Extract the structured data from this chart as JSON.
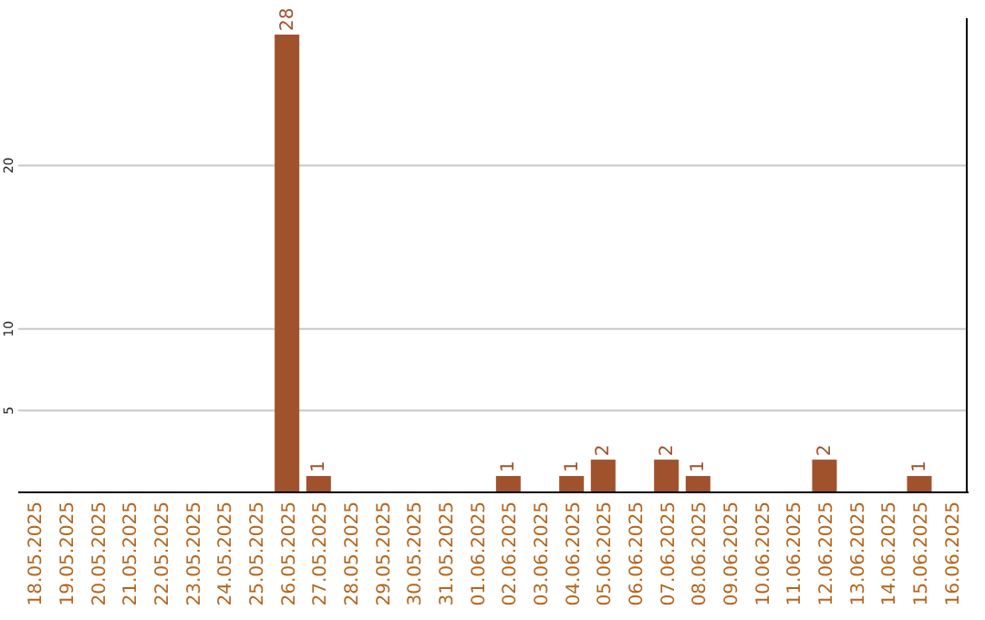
{
  "chart_data": {
    "type": "bar",
    "categories": [
      "18.05.2025",
      "19.05.2025",
      "20.05.2025",
      "21.05.2025",
      "22.05.2025",
      "23.05.2025",
      "24.05.2025",
      "25.05.2025",
      "26.05.2025",
      "27.05.2025",
      "28.05.2025",
      "29.05.2025",
      "30.05.2025",
      "31.05.2025",
      "01.06.2025",
      "02.06.2025",
      "03.06.2025",
      "04.06.2025",
      "05.06.2025",
      "06.06.2025",
      "07.06.2025",
      "08.06.2025",
      "09.06.2025",
      "10.06.2025",
      "11.06.2025",
      "12.06.2025",
      "13.06.2025",
      "14.06.2025",
      "15.06.2025",
      "16.06.2025"
    ],
    "values": [
      0,
      0,
      0,
      0,
      0,
      0,
      0,
      0,
      28,
      1,
      0,
      0,
      0,
      0,
      0,
      1,
      0,
      1,
      2,
      0,
      2,
      1,
      0,
      0,
      0,
      2,
      0,
      0,
      1,
      0
    ],
    "value_labels": [
      null,
      null,
      null,
      null,
      null,
      null,
      null,
      null,
      "28",
      "1",
      null,
      null,
      null,
      null,
      null,
      "1",
      null,
      "1",
      "2",
      null,
      "2",
      "1",
      null,
      null,
      null,
      "2",
      null,
      null,
      "1",
      null
    ],
    "color": "#a0522d",
    "ylim": [
      0,
      29
    ],
    "yticks": [
      5,
      10,
      20
    ],
    "grid": "y"
  }
}
